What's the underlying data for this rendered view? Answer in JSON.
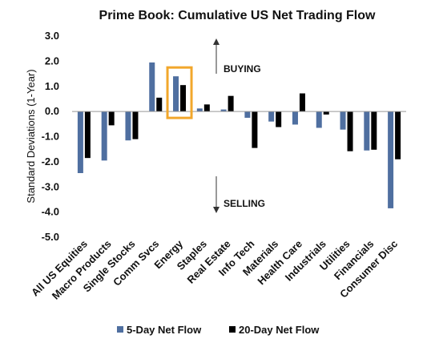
{
  "chart_data": {
    "type": "bar",
    "title": "Prime Book: Cumulative US Net Trading Flow",
    "ylabel": "Standard Deviations (1-Year)",
    "xlabel": "",
    "ylim": [
      -5.0,
      3.0
    ],
    "yticks": [
      "3.0",
      "2.0",
      "1.0",
      "0.0",
      "-1.0",
      "-2.0",
      "-3.0",
      "-4.0",
      "-5.0"
    ],
    "categories": [
      "All US Equities",
      "Macro Products",
      "Single Stocks",
      "Comm Svcs",
      "Energy",
      "Staples",
      "Real Estate",
      "Info Tech",
      "Materials",
      "Health Care",
      "Industrials",
      "Utilities",
      "Financials",
      "Consumer Disc"
    ],
    "series": [
      {
        "name": "5-Day Net Flow",
        "color": "#4f6fa0",
        "values": [
          -2.45,
          -1.95,
          -1.15,
          1.95,
          1.4,
          0.12,
          0.08,
          -0.25,
          -0.4,
          -0.52,
          -0.65,
          -0.72,
          -1.55,
          -3.85
        ]
      },
      {
        "name": "20-Day Net Flow",
        "color": "#000000",
        "values": [
          -1.85,
          -0.55,
          -1.1,
          0.55,
          1.05,
          0.28,
          0.62,
          -1.45,
          -0.62,
          0.72,
          -0.12,
          -1.58,
          -1.52,
          -1.9
        ]
      }
    ],
    "annotations": {
      "buying": "BUYING",
      "selling": "SELLING"
    },
    "highlight": {
      "category": "Energy",
      "color": "#f2a72c"
    },
    "grid": false,
    "legend": "bottom"
  }
}
